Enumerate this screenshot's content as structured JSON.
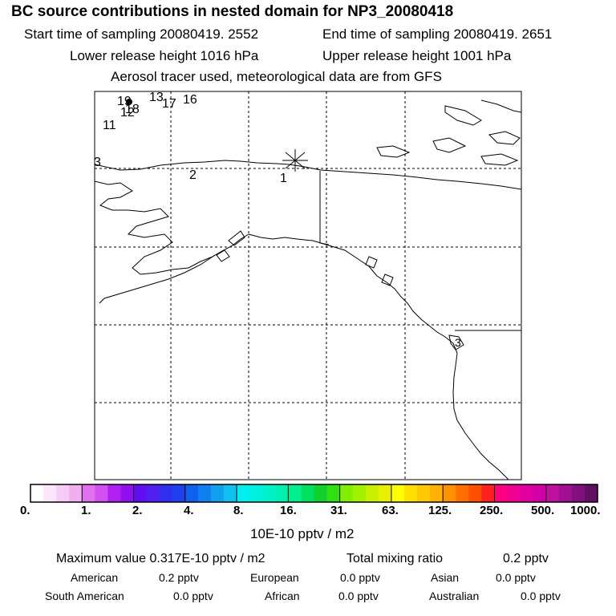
{
  "header": {
    "title": "BC  source contributions in nested domain for NP3_20080418",
    "start_label": "Start time of sampling 20080419.  2552",
    "end_label": "End time of sampling 20080419.  2651",
    "lower_label": "Lower release height 1016 hPa",
    "upper_label": "Upper release height 1001 hPa",
    "tracer_label": "Aerosol tracer used, meteorological data are from GFS"
  },
  "map": {
    "track_labels": [
      {
        "text": "1"
      },
      {
        "text": "2"
      },
      {
        "text": "3"
      },
      {
        "text": "11"
      },
      {
        "text": "12"
      },
      {
        "text": "13"
      },
      {
        "text": "16"
      },
      {
        "text": "17"
      },
      {
        "text": "18"
      },
      {
        "text": "19"
      },
      {
        "text": "3"
      }
    ]
  },
  "colorbar": {
    "segment_colors": [
      "#ffffff",
      "#fbe6fb",
      "#f6ccf6",
      "#f0b0f0",
      "#e070f0",
      "#d050f0",
      "#b020f0",
      "#9010f0",
      "#6010f0",
      "#5020f0",
      "#3030f0",
      "#2040f0",
      "#1060f0",
      "#1080f0",
      "#10a0f0",
      "#10c0f0",
      "#00f0f0",
      "#00f0e0",
      "#00f0c8",
      "#00f0b0",
      "#00f090",
      "#00e060",
      "#10d030",
      "#30e010",
      "#80f000",
      "#a0f000",
      "#c8f000",
      "#e8f000",
      "#ffff00",
      "#ffe000",
      "#ffc800",
      "#ffb000",
      "#ff9000",
      "#ff7000",
      "#ff5000",
      "#ff2020",
      "#ff0080",
      "#f00090",
      "#e000a0",
      "#d000a8",
      "#c010a0",
      "#a01090",
      "#801080",
      "#601060"
    ],
    "tick_labels": [
      "0.",
      "1.",
      "2.",
      "4.",
      "8.",
      "16.",
      "31.",
      "63.",
      "125.",
      "250.",
      "500.",
      "1000."
    ],
    "unit": "10E-10 pptv / m2"
  },
  "stats": {
    "max_value_label": "Maximum value  0.317E-10 pptv / m2",
    "total_label": "Total mixing ratio",
    "total_value": "0.2 pptv",
    "regions": [
      {
        "name": "American",
        "value": "0.2 pptv"
      },
      {
        "name": "European",
        "value": "0.0 pptv"
      },
      {
        "name": "Asian",
        "value": "0.0 pptv"
      },
      {
        "name": "South American",
        "value": "0.0 pptv"
      },
      {
        "name": "African",
        "value": "0.0 pptv"
      },
      {
        "name": "Australian",
        "value": "0.0 pptv"
      }
    ]
  }
}
